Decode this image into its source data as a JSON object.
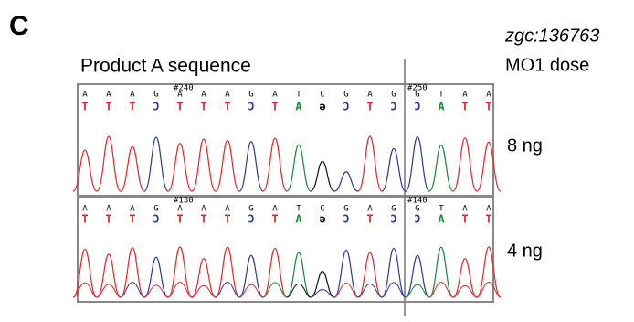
{
  "panel_label": "C",
  "gene": "zgc:136763",
  "dose_header": "MO1 dose",
  "title": "Product A sequence",
  "traces": [
    {
      "dose": "8 ng",
      "markers": [
        "#240",
        "#250"
      ],
      "reference": [
        "A",
        "A",
        "A",
        "G",
        "A",
        "A",
        "A",
        "G",
        "A",
        "T",
        "C",
        "G",
        "A",
        "G",
        "G",
        "T",
        "A",
        "A"
      ],
      "calls": [
        "T",
        "T",
        "T",
        "Ɔ",
        "T",
        "T",
        "T",
        "Ɔ",
        "T",
        "A",
        "ə",
        "Ɔ",
        "T",
        "Ɔ",
        "Ɔ",
        "A",
        "T",
        "T"
      ]
    },
    {
      "dose": "4 ng",
      "markers": [
        "#130",
        "#140"
      ],
      "reference": [
        "A",
        "A",
        "A",
        "G",
        "A",
        "A",
        "A",
        "G",
        "A",
        "T",
        "C",
        "G",
        "A",
        "G",
        "G",
        "T",
        "A",
        "A"
      ],
      "calls": [
        "T",
        "T",
        "T",
        "Ɔ",
        "T",
        "T",
        "T",
        "Ɔ",
        "T",
        "A",
        "ə",
        "Ɔ",
        "T",
        "Ɔ",
        "Ɔ",
        "A",
        "T",
        "T"
      ]
    }
  ]
}
